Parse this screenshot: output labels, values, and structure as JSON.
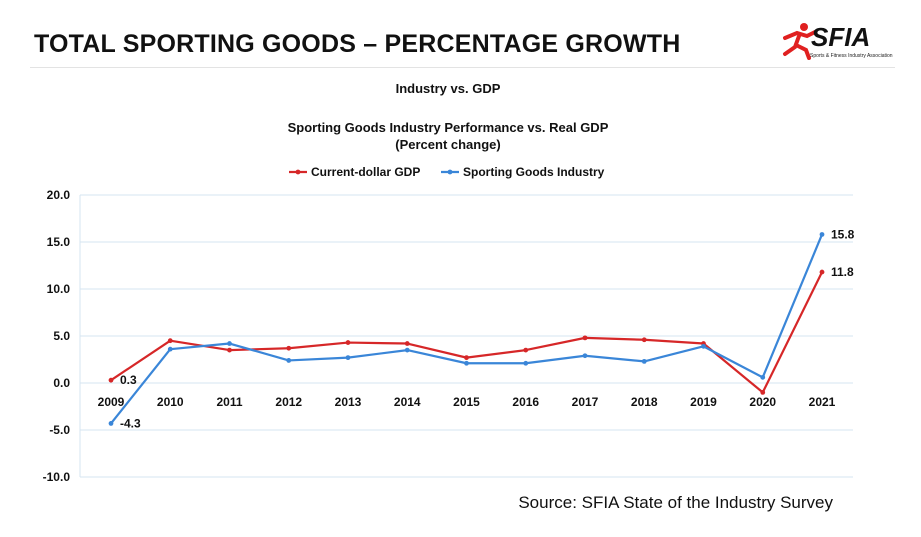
{
  "header": {
    "title": "TOTAL SPORTING GOODS – PERCENTAGE GROWTH",
    "logo_text": "SFIA",
    "logo_subtext": "Sports & Fitness Industry Association"
  },
  "chart_data": {
    "type": "line",
    "supertitle": "Industry vs. GDP",
    "title": "Sporting Goods Industry Performance vs. Real GDP",
    "subtitle": "(Percent change)",
    "categories": [
      "2009",
      "2010",
      "2011",
      "2012",
      "2013",
      "2014",
      "2015",
      "2016",
      "2017",
      "2018",
      "2019",
      "2020",
      "2021"
    ],
    "series": [
      {
        "name": "Current-dollar GDP",
        "color": "#d62728",
        "values": [
          0.3,
          4.5,
          3.5,
          3.7,
          4.3,
          4.2,
          2.7,
          3.5,
          4.8,
          4.6,
          4.2,
          -1.0,
          11.8
        ]
      },
      {
        "name": "Sporting Goods Industry",
        "color": "#3a86d8",
        "values": [
          -4.3,
          3.6,
          4.2,
          2.4,
          2.7,
          3.5,
          2.1,
          2.1,
          2.9,
          2.3,
          3.9,
          0.6,
          15.8
        ]
      }
    ],
    "data_labels": [
      {
        "series": 0,
        "index": 0,
        "text": "0.3"
      },
      {
        "series": 1,
        "index": 0,
        "text": "-4.3"
      },
      {
        "series": 1,
        "index": 12,
        "text": "15.8"
      },
      {
        "series": 0,
        "index": 12,
        "text": "11.8"
      }
    ],
    "yticks": [
      "20.0",
      "15.0",
      "10.0",
      "5.0",
      "0.0",
      "-5.0",
      "-10.0"
    ],
    "ylim": [
      -10,
      20
    ],
    "grid": true,
    "legend_position": "top-center",
    "source": "Source: SFIA State of the Industry Survey"
  }
}
